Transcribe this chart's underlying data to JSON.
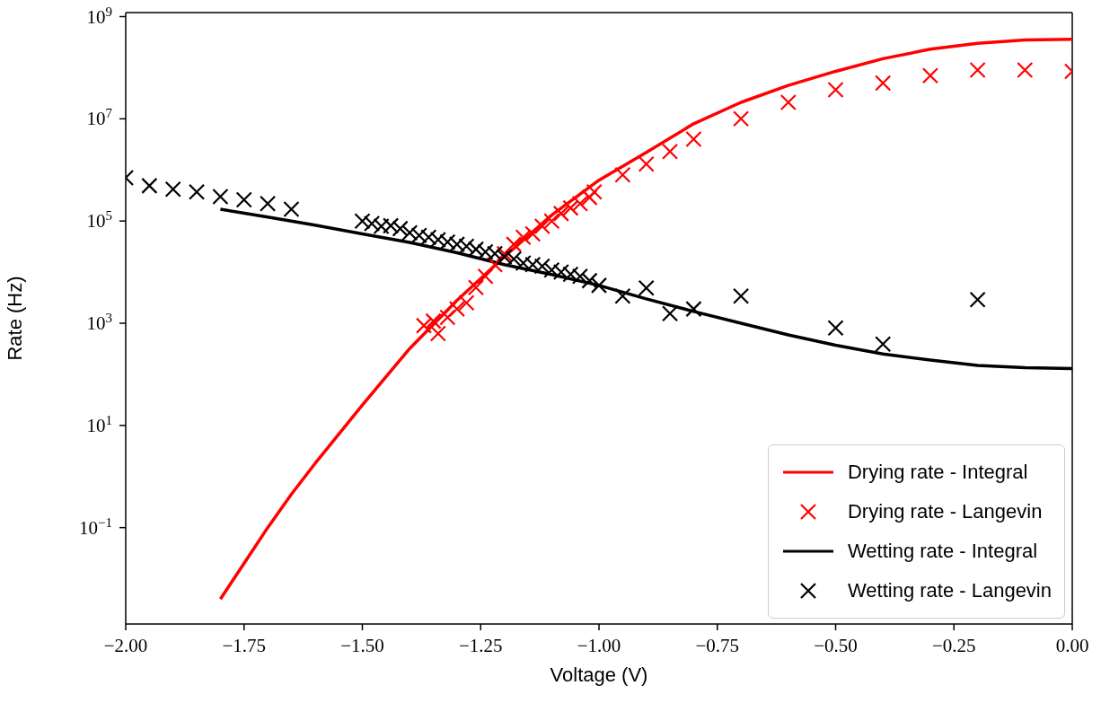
{
  "chart_data": {
    "type": "line",
    "xlabel": "Voltage (V)",
    "ylabel": "Rate (Hz)",
    "log": "y",
    "grid": false,
    "legend": "bottom right",
    "xlim": [
      -2,
      0
    ],
    "ylim": [
      0.0013,
      1200000000.0
    ],
    "xticks": [
      {
        "value": -2,
        "label": "−2.00"
      },
      {
        "value": -1.75,
        "label": "−1.75"
      },
      {
        "value": -1.5,
        "label": "−1.50"
      },
      {
        "value": -1.25,
        "label": "−1.25"
      },
      {
        "value": -1,
        "label": "−1.00"
      },
      {
        "value": -0.75,
        "label": "−0.75"
      },
      {
        "value": -0.5,
        "label": "−0.50"
      },
      {
        "value": -0.25,
        "label": "−0.25"
      },
      {
        "value": 0,
        "label": "0.00"
      }
    ],
    "yticks": [
      {
        "value": 0.1,
        "label": "10$^{−1}$"
      },
      {
        "value": 10,
        "label": "10$^{1}$"
      },
      {
        "value": 1000,
        "label": "10$^{3}$"
      },
      {
        "value": 100000,
        "label": "10$^{5}$"
      },
      {
        "value": 10000000,
        "label": "10$^{7}$"
      },
      {
        "value": 1000000000,
        "label": "10$^{9}$"
      }
    ],
    "series": [
      {
        "name": "Drying rate - Integral",
        "type": "line",
        "color": "#ff0000",
        "line_style": "solid",
        "marker": "none",
        "x": [
          -1.8,
          -1.75,
          -1.7,
          -1.65,
          -1.6,
          -1.5,
          -1.4,
          -1.3,
          -1.2,
          -1.1,
          -1.0,
          -0.9,
          -0.8,
          -0.7,
          -0.6,
          -0.5,
          -0.4,
          -0.3,
          -0.2,
          -0.1,
          0
        ],
        "values": [
          0.004,
          0.02,
          0.1,
          0.45,
          1.8,
          25,
          320,
          2800,
          20000,
          130000,
          630000,
          2200000,
          8000000,
          21000000,
          45000000,
          85000000,
          150000000,
          230000000,
          300000000,
          350000000,
          360000000
        ]
      },
      {
        "name": "Drying rate - Langevin",
        "type": "scatter",
        "color": "#ff0000",
        "marker": "cross",
        "x": [
          -1.37,
          -1.35,
          -1.34,
          -1.32,
          -1.3,
          -1.28,
          -1.26,
          -1.24,
          -1.22,
          -1.2,
          -1.18,
          -1.16,
          -1.14,
          -1.12,
          -1.1,
          -1.08,
          -1.06,
          -1.04,
          -1.02,
          -1.01,
          -0.95,
          -0.9,
          -0.85,
          -0.8,
          -0.7,
          -0.6,
          -0.5,
          -0.4,
          -0.3,
          -0.2,
          -0.1,
          0
        ],
        "values": [
          900,
          1100,
          630,
          1300,
          1900,
          2500,
          5000,
          8300,
          14000,
          23000,
          35000,
          48000,
          56000,
          79000,
          100000,
          140000,
          180000,
          220000,
          290000,
          370000,
          800000,
          1300000,
          2300000,
          4000000,
          10000000,
          21000000,
          37000000,
          50000000,
          70000000,
          90000000,
          90000000,
          85000000
        ]
      },
      {
        "name": "Wetting rate - Integral",
        "type": "line",
        "color": "#000000",
        "line_style": "solid",
        "marker": "none",
        "x": [
          -1.8,
          -1.7,
          -1.6,
          -1.5,
          -1.4,
          -1.3,
          -1.2,
          -1.1,
          -1.0,
          -0.9,
          -0.8,
          -0.7,
          -0.6,
          -0.5,
          -0.4,
          -0.3,
          -0.2,
          -0.1,
          0
        ],
        "values": [
          170000,
          120000,
          83000,
          56000,
          38000,
          24000,
          14000,
          9000,
          5500,
          3000,
          1700,
          1000,
          590,
          370,
          250,
          190,
          150,
          135,
          130
        ]
      },
      {
        "name": "Wetting rate - Langevin",
        "type": "scatter",
        "color": "#000000",
        "marker": "cross",
        "x": [
          -2.0,
          -1.95,
          -1.9,
          -1.85,
          -1.8,
          -1.75,
          -1.7,
          -1.65,
          -1.5,
          -1.48,
          -1.46,
          -1.44,
          -1.42,
          -1.4,
          -1.38,
          -1.36,
          -1.34,
          -1.32,
          -1.3,
          -1.28,
          -1.26,
          -1.24,
          -1.22,
          -1.2,
          -1.18,
          -1.16,
          -1.14,
          -1.12,
          -1.1,
          -1.08,
          -1.06,
          -1.04,
          -1.02,
          -1.0,
          -0.95,
          -0.9,
          -0.85,
          -0.8,
          -0.7,
          -0.5,
          -0.4,
          -0.2
        ],
        "values": [
          700000,
          490000,
          420000,
          370000,
          300000,
          260000,
          220000,
          170000,
          100000,
          89000,
          79000,
          81000,
          71000,
          59000,
          52000,
          48000,
          43000,
          39000,
          35000,
          32000,
          28000,
          25000,
          23000,
          20000,
          18000,
          15000,
          14000,
          13000,
          11000,
          10000,
          9100,
          8300,
          6800,
          5500,
          3400,
          4900,
          1550,
          1900,
          3400,
          810,
          390,
          2900
        ]
      }
    ]
  }
}
